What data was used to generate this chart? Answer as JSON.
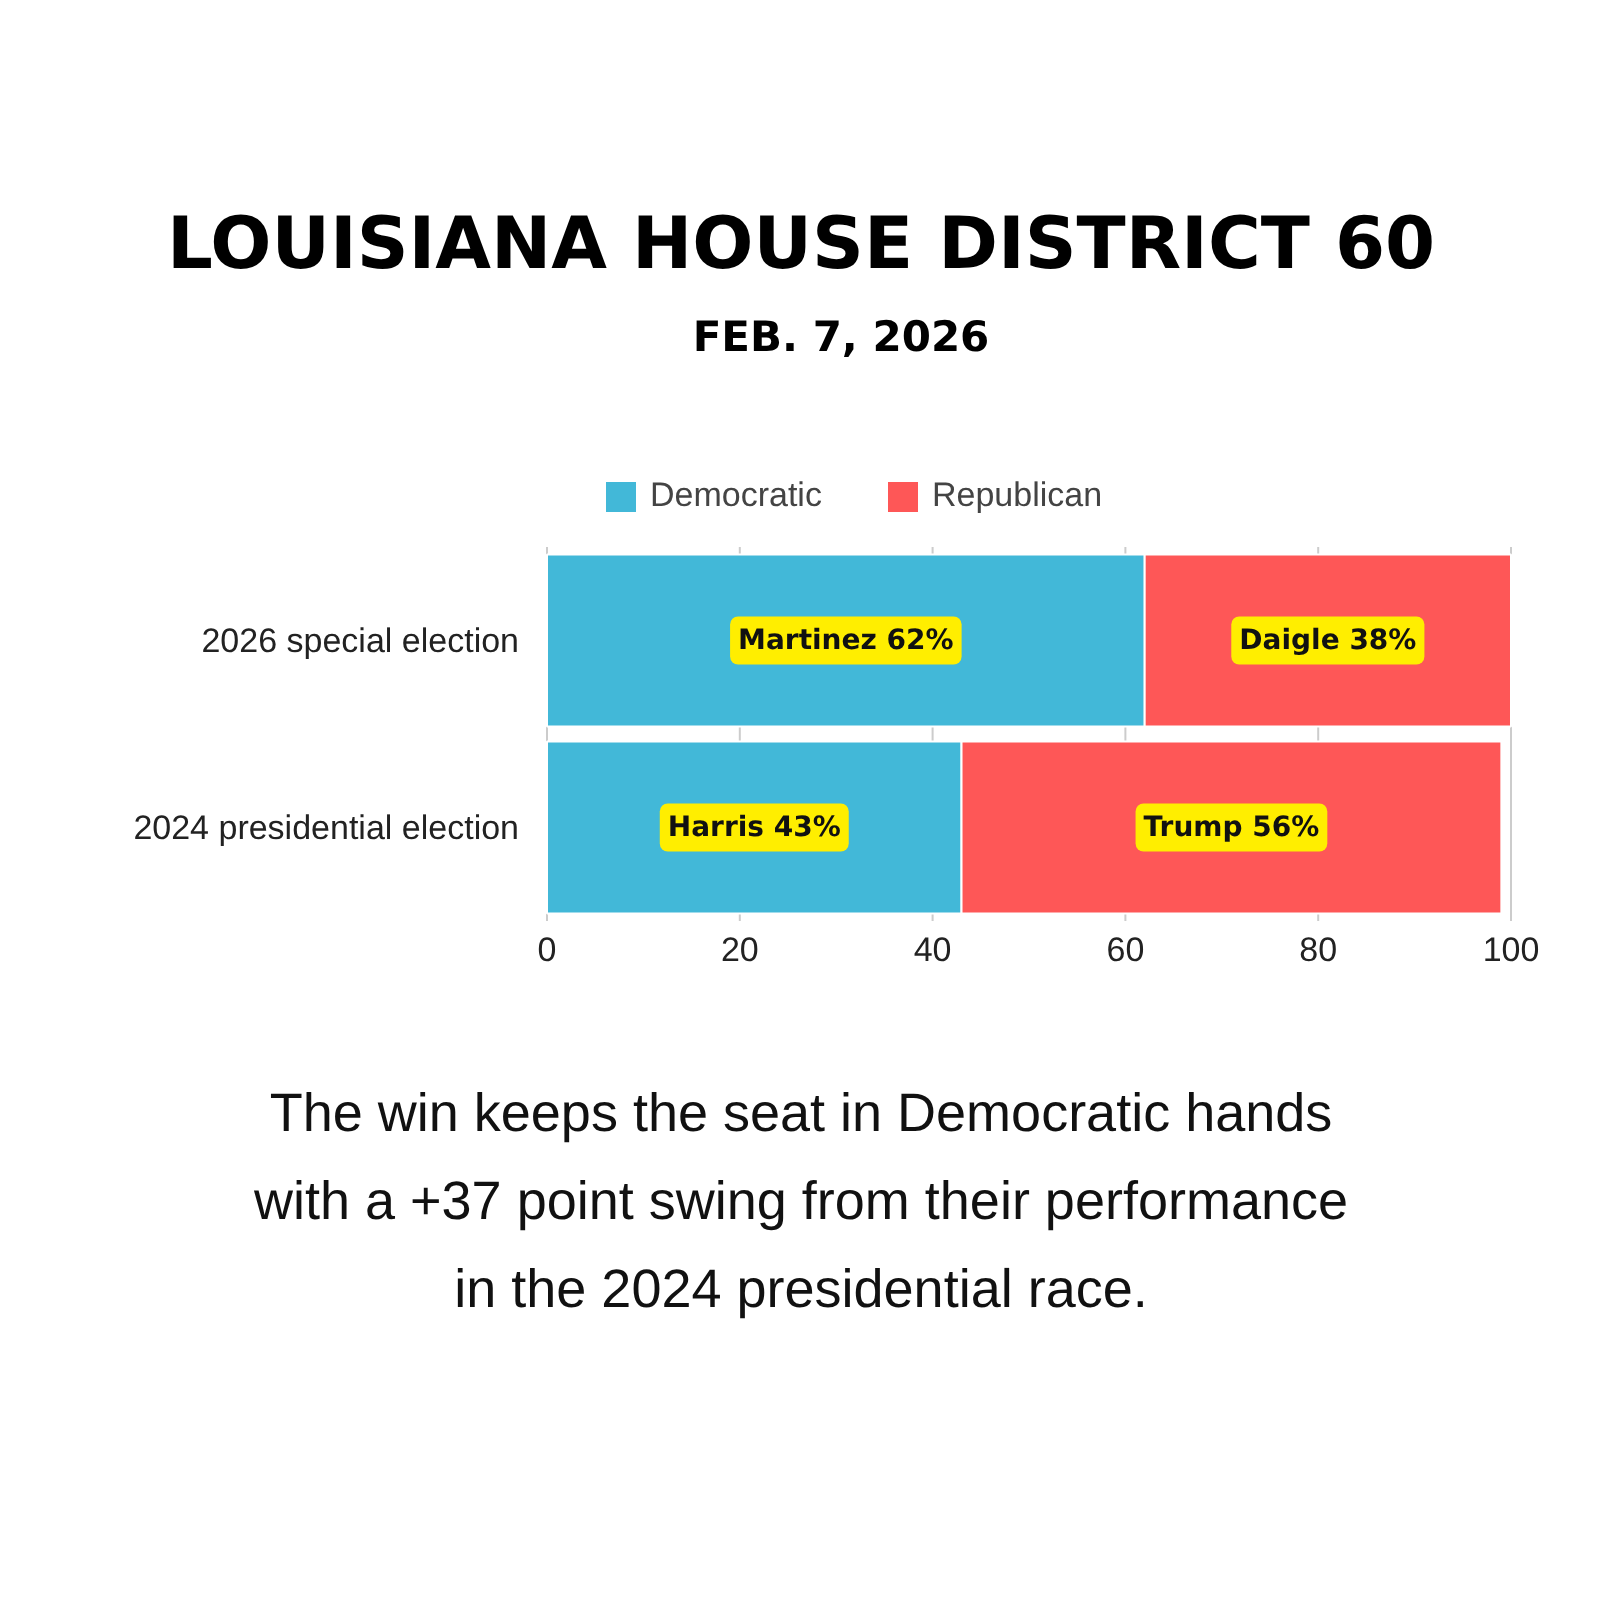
{
  "chart_data": {
    "type": "bar",
    "orientation": "horizontal",
    "stacked": true,
    "title": "LOUISIANA HOUSE DISTRICT 60",
    "subtitle": "FEB. 7, 2026",
    "categories": [
      "2026 special election",
      "2024 presidential election"
    ],
    "series": [
      {
        "name": "Democratic",
        "color": "#42b8d8",
        "values": [
          62,
          43
        ],
        "value_labels": [
          "Martinez 62%",
          "Harris 43%"
        ]
      },
      {
        "name": "Republican",
        "color": "#fe5757",
        "values": [
          38,
          56
        ],
        "value_labels": [
          "Daigle 38%",
          "Trump 56%"
        ]
      }
    ],
    "xlim": [
      0,
      100
    ],
    "xticks": [
      0,
      20,
      40,
      60,
      80,
      100
    ],
    "grid": "x",
    "legend": "top",
    "annotations": [
      "The win keeps the seat in Democratic hands with a +37 point swing from their performance in the 2024 presidential race."
    ]
  }
}
